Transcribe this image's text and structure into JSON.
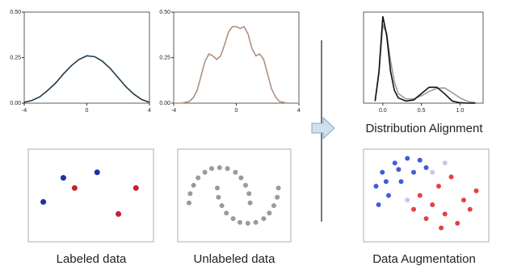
{
  "chart_data": [
    {
      "type": "line",
      "x": [
        -4,
        -3.5,
        -3,
        -2.5,
        -2,
        -1.5,
        -1,
        -0.5,
        0,
        0.5,
        1,
        1.5,
        2,
        2.5,
        3,
        3.5,
        4
      ],
      "series": [
        {
          "color": "#1f3b4d",
          "values": [
            0.005,
            0.015,
            0.035,
            0.07,
            0.11,
            0.16,
            0.205,
            0.24,
            0.26,
            0.255,
            0.23,
            0.19,
            0.14,
            0.09,
            0.05,
            0.02,
            0.005
          ]
        }
      ],
      "xlim": [
        -4,
        4
      ],
      "ylim": [
        0,
        0.5
      ],
      "xticks": [
        -4,
        0,
        4
      ],
      "yticks": [
        {
          "value": 0,
          "label": "0.00"
        },
        {
          "value": 0.25,
          "label": "0.25"
        },
        {
          "value": 0.5,
          "label": "0.50"
        }
      ]
    },
    {
      "type": "line",
      "x": [
        -4,
        -3.75,
        -3.5,
        -3.25,
        -3,
        -2.75,
        -2.5,
        -2.25,
        -2,
        -1.75,
        -1.5,
        -1.25,
        -1,
        -0.75,
        -0.5,
        -0.25,
        0,
        0.25,
        0.5,
        0.75,
        1,
        1.25,
        1.5,
        1.75,
        2,
        2.25,
        2.5,
        2.75,
        3,
        3.25,
        3.5,
        3.75,
        4
      ],
      "series": [
        {
          "color": "#b09080",
          "values": [
            0,
            0,
            0,
            0.005,
            0.01,
            0.03,
            0.07,
            0.15,
            0.23,
            0.27,
            0.26,
            0.24,
            0.26,
            0.32,
            0.39,
            0.42,
            0.42,
            0.41,
            0.42,
            0.38,
            0.3,
            0.26,
            0.27,
            0.24,
            0.16,
            0.08,
            0.035,
            0.01,
            0.005,
            0,
            0,
            0,
            0
          ]
        }
      ],
      "xlim": [
        -4,
        4
      ],
      "ylim": [
        0,
        0.5
      ],
      "xticks": [
        -4,
        0,
        4
      ],
      "yticks": [
        {
          "value": 0,
          "label": "0.00"
        },
        {
          "value": 0.25,
          "label": "0.25"
        },
        {
          "value": 0.5,
          "label": "0.50"
        }
      ]
    },
    {
      "type": "line",
      "title": "Distribution Alignment",
      "x": [
        -0.1,
        -0.05,
        0,
        0.05,
        0.1,
        0.15,
        0.2,
        0.3,
        0.4,
        0.5,
        0.6,
        0.7,
        0.8,
        0.9,
        1.0,
        1.1,
        1.2
      ],
      "series": [
        {
          "color": "#999999",
          "values": [
            0.1,
            1.4,
            3.7,
            3.3,
            2.0,
            1.0,
            0.45,
            0.2,
            0.2,
            0.35,
            0.55,
            0.7,
            0.72,
            0.5,
            0.25,
            0.08,
            0.02
          ]
        },
        {
          "color": "#111111",
          "values": [
            0.1,
            1.5,
            4.1,
            3.2,
            1.5,
            0.6,
            0.25,
            0.1,
            0.15,
            0.45,
            0.75,
            0.75,
            0.45,
            0.1,
            0.02,
            0,
            0
          ]
        }
      ],
      "xlim": [
        -0.25,
        1.3
      ],
      "ylim": [
        0,
        4.3
      ],
      "xticks": [
        {
          "value": 0,
          "label": "0.0"
        },
        {
          "value": 0.5,
          "label": "0.5"
        },
        {
          "value": 1,
          "label": "1.0"
        }
      ]
    },
    {
      "type": "scatter",
      "title": "Labeled data",
      "xlim": [
        0,
        1
      ],
      "ylim": [
        0,
        1
      ],
      "series": [
        {
          "color": "#1f2fa8",
          "x": [
            0.12,
            0.28,
            0.55
          ],
          "values": [
            0.43,
            0.69,
            0.75
          ]
        },
        {
          "color": "#c8202a",
          "x": [
            0.37,
            0.86,
            0.72
          ],
          "values": [
            0.58,
            0.58,
            0.3
          ]
        }
      ]
    },
    {
      "type": "scatter",
      "title": "Unlabeled data",
      "xlim": [
        0,
        1
      ],
      "ylim": [
        0,
        1
      ],
      "series": [
        {
          "color": "#888888",
          "x": [
            0.1,
            0.11,
            0.14,
            0.18,
            0.24,
            0.3,
            0.37,
            0.44,
            0.51,
            0.56,
            0.6,
            0.63,
            0.64,
            0.35,
            0.36,
            0.39,
            0.43,
            0.49,
            0.55,
            0.62,
            0.69,
            0.76,
            0.81,
            0.85,
            0.88,
            0.89
          ],
          "values": [
            0.42,
            0.52,
            0.61,
            0.69,
            0.75,
            0.79,
            0.8,
            0.79,
            0.75,
            0.69,
            0.61,
            0.52,
            0.42,
            0.58,
            0.48,
            0.39,
            0.31,
            0.25,
            0.21,
            0.2,
            0.21,
            0.25,
            0.31,
            0.39,
            0.48,
            0.58
          ]
        }
      ]
    },
    {
      "type": "scatter",
      "title": "Data Augmentation",
      "xlim": [
        0,
        1
      ],
      "ylim": [
        0,
        1
      ],
      "series": [
        {
          "color": "#2040d0",
          "x": [
            0.1,
            0.15,
            0.25,
            0.35,
            0.45,
            0.2,
            0.3,
            0.4,
            0.12,
            0.5,
            0.28,
            0.18
          ],
          "values": [
            0.6,
            0.75,
            0.85,
            0.9,
            0.88,
            0.5,
            0.65,
            0.75,
            0.4,
            0.8,
            0.78,
            0.65
          ]
        },
        {
          "color": "#c8b8e0",
          "x": [
            0.55,
            0.65,
            0.35
          ],
          "values": [
            0.75,
            0.85,
            0.45
          ]
        },
        {
          "color": "#e02020",
          "x": [
            0.45,
            0.55,
            0.65,
            0.75,
            0.8,
            0.9,
            0.6,
            0.7,
            0.5,
            0.62,
            0.85,
            0.4
          ],
          "values": [
            0.5,
            0.4,
            0.3,
            0.2,
            0.45,
            0.55,
            0.6,
            0.7,
            0.25,
            0.15,
            0.35,
            0.35
          ]
        }
      ]
    }
  ]
}
